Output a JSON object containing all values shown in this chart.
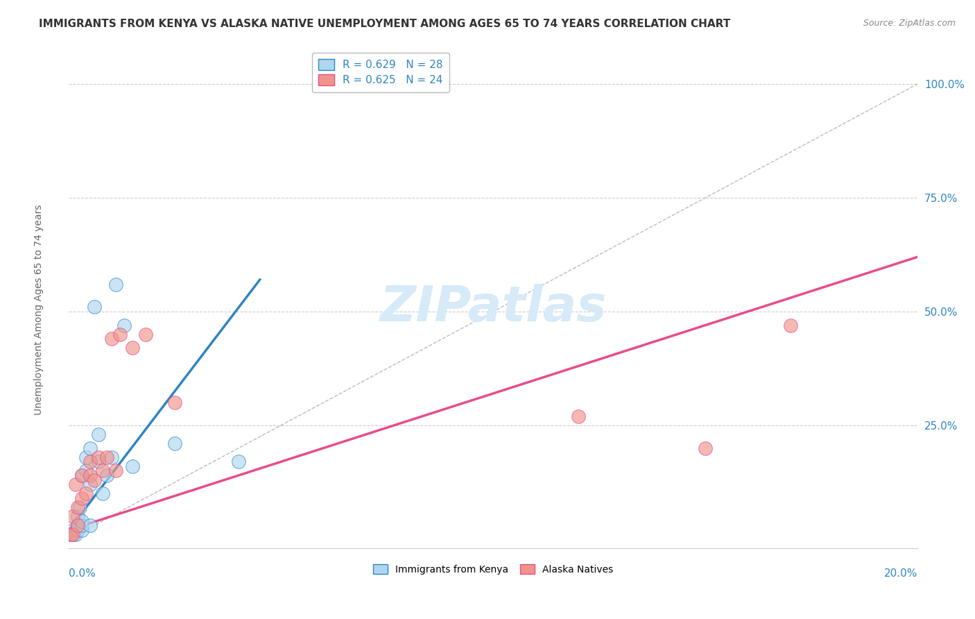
{
  "title": "IMMIGRANTS FROM KENYA VS ALASKA NATIVE UNEMPLOYMENT AMONG AGES 65 TO 74 YEARS CORRELATION CHART",
  "source": "Source: ZipAtlas.com",
  "xlabel_bottom_left": "0.0%",
  "xlabel_bottom_right": "20.0%",
  "ylabel": "Unemployment Among Ages 65 to 74 years",
  "y_tick_labels": [
    "100.0%",
    "75.0%",
    "50.0%",
    "25.0%"
  ],
  "y_tick_values": [
    1.0,
    0.75,
    0.5,
    0.25
  ],
  "x_range": [
    0,
    0.2
  ],
  "y_range": [
    -0.02,
    1.08
  ],
  "watermark": "ZIPatlas",
  "legend_blue_r": "R = 0.629",
  "legend_blue_n": "N = 28",
  "legend_pink_r": "R = 0.625",
  "legend_pink_n": "N = 24",
  "blue_color": "#AED6F1",
  "blue_line_color": "#2E86C1",
  "pink_color": "#F1948A",
  "pink_line_color": "#E74C8B",
  "blue_scatter_x": [
    0.0005,
    0.001,
    0.001,
    0.0015,
    0.002,
    0.002,
    0.002,
    0.0025,
    0.003,
    0.003,
    0.003,
    0.003,
    0.004,
    0.004,
    0.005,
    0.005,
    0.005,
    0.006,
    0.007,
    0.007,
    0.008,
    0.009,
    0.01,
    0.011,
    0.013,
    0.015,
    0.025,
    0.04
  ],
  "blue_scatter_y": [
    0.01,
    0.01,
    0.02,
    0.01,
    0.02,
    0.03,
    0.05,
    0.07,
    0.02,
    0.03,
    0.04,
    0.14,
    0.15,
    0.18,
    0.03,
    0.12,
    0.2,
    0.51,
    0.17,
    0.23,
    0.1,
    0.14,
    0.18,
    0.56,
    0.47,
    0.16,
    0.21,
    0.17
  ],
  "pink_scatter_x": [
    0.0005,
    0.001,
    0.001,
    0.0015,
    0.002,
    0.002,
    0.003,
    0.003,
    0.004,
    0.005,
    0.005,
    0.006,
    0.007,
    0.008,
    0.009,
    0.01,
    0.011,
    0.012,
    0.015,
    0.018,
    0.025,
    0.12,
    0.15,
    0.17
  ],
  "pink_scatter_y": [
    0.01,
    0.01,
    0.05,
    0.12,
    0.03,
    0.07,
    0.09,
    0.14,
    0.1,
    0.14,
    0.17,
    0.13,
    0.18,
    0.15,
    0.18,
    0.44,
    0.15,
    0.45,
    0.42,
    0.45,
    0.3,
    0.27,
    0.2,
    0.47
  ],
  "blue_line_x": [
    0.0,
    0.045
  ],
  "blue_line_y": [
    0.02,
    0.57
  ],
  "pink_line_x": [
    0.0,
    0.2
  ],
  "pink_line_y": [
    0.02,
    0.62
  ],
  "ref_line_x": [
    0.0,
    0.2
  ],
  "ref_line_y": [
    0.0,
    1.0
  ],
  "grid_color": "#CCCCCC",
  "background_color": "#FFFFFF",
  "title_fontsize": 11,
  "source_fontsize": 9,
  "axis_label_fontsize": 10,
  "tick_fontsize": 11,
  "legend_fontsize": 11,
  "watermark_fontsize": 52,
  "watermark_color": "#D6EAF8",
  "scatter_size": 200
}
